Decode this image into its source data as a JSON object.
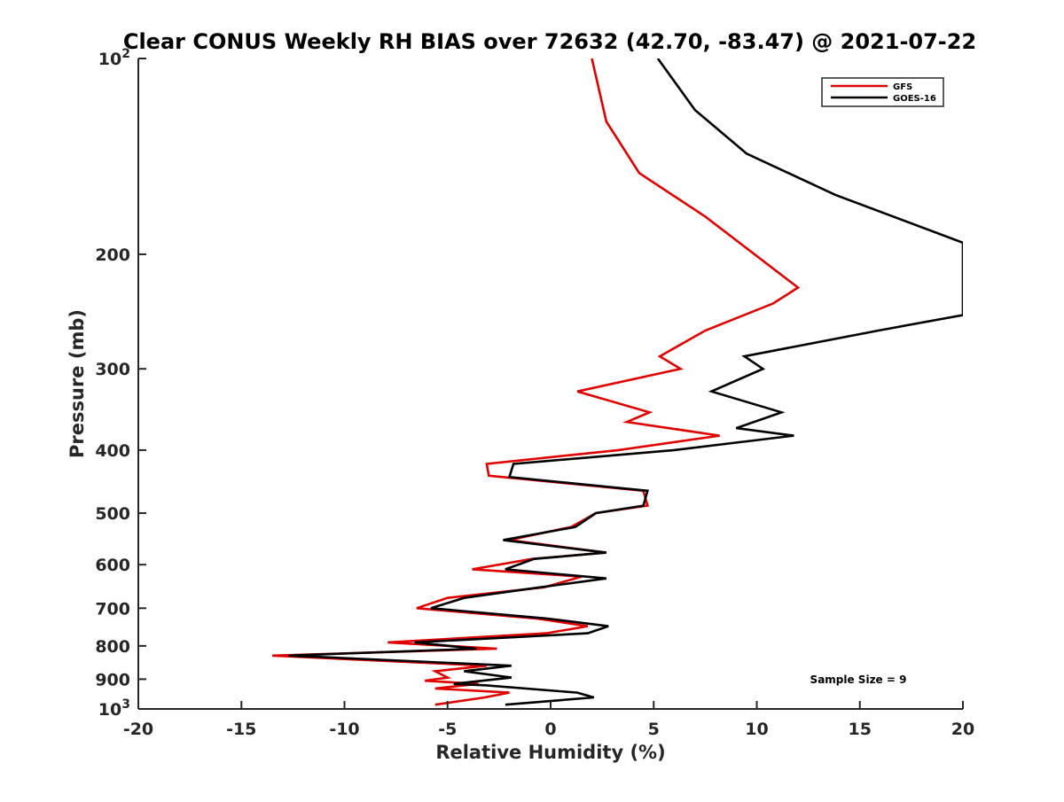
{
  "chart_data": {
    "type": "line",
    "title": "Clear CONUS Weekly RH BIAS over 72632 (42.70, -83.47) @ 2021-07-22",
    "xlabel": "Relative Humidity (%)",
    "ylabel": "Pressure (mb)",
    "xlim": [
      -20,
      20
    ],
    "ylim": [
      100,
      1000
    ],
    "y_scale": "log",
    "y_reversed": true,
    "grid": false,
    "legend_position": "top-right",
    "x_ticks": [
      -20,
      -15,
      -10,
      -5,
      0,
      5,
      10,
      15,
      20
    ],
    "x_tick_labels": [
      "-20",
      "-15",
      "-10",
      "-5",
      "0",
      "5",
      "10",
      "15",
      "20"
    ],
    "y_ticks": [
      100,
      200,
      300,
      400,
      500,
      600,
      700,
      800,
      900,
      1000
    ],
    "y_tick_labels": [
      {
        "base": "10",
        "exp": "2"
      },
      {
        "base": "200",
        "exp": ""
      },
      {
        "base": "300",
        "exp": ""
      },
      {
        "base": "400",
        "exp": ""
      },
      {
        "base": "500",
        "exp": ""
      },
      {
        "base": "600",
        "exp": ""
      },
      {
        "base": "700",
        "exp": ""
      },
      {
        "base": "800",
        "exp": ""
      },
      {
        "base": "900",
        "exp": ""
      },
      {
        "base": "10",
        "exp": "3"
      }
    ],
    "series": [
      {
        "name": "GFS",
        "color": "#e00000",
        "points": [
          [
            2.0,
            100
          ],
          [
            2.7,
            125
          ],
          [
            4.3,
            150
          ],
          [
            7.5,
            175
          ],
          [
            12.0,
            225
          ],
          [
            10.8,
            238
          ],
          [
            7.5,
            262
          ],
          [
            5.3,
            287
          ],
          [
            6.3,
            300
          ],
          [
            1.3,
            325
          ],
          [
            4.8,
            350
          ],
          [
            3.7,
            362
          ],
          [
            8.2,
            380
          ],
          [
            3.3,
            400
          ],
          [
            -3.1,
            420
          ],
          [
            -3.0,
            438
          ],
          [
            4.5,
            462
          ],
          [
            4.7,
            487
          ],
          [
            2.2,
            500
          ],
          [
            1.0,
            525
          ],
          [
            -2.0,
            550
          ],
          [
            2.7,
            575
          ],
          [
            -0.9,
            588
          ],
          [
            -3.8,
            610
          ],
          [
            1.5,
            626
          ],
          [
            -0.3,
            650
          ],
          [
            -5.0,
            675
          ],
          [
            -6.5,
            700
          ],
          [
            -0.7,
            726
          ],
          [
            1.8,
            746
          ],
          [
            -0.2,
            765
          ],
          [
            -7.9,
            790
          ],
          [
            -2.6,
            808
          ],
          [
            -13.5,
            828
          ],
          [
            -3.1,
            858
          ],
          [
            -5.6,
            875
          ],
          [
            -5.0,
            895
          ],
          [
            -6.1,
            905
          ],
          [
            -3.5,
            915
          ],
          [
            -5.6,
            930
          ],
          [
            -2.0,
            944
          ],
          [
            -3.2,
            960
          ],
          [
            -5.6,
            985
          ]
        ]
      },
      {
        "name": "GOES-16",
        "color": "#000000",
        "points": [
          [
            5.2,
            100
          ],
          [
            7.0,
            120
          ],
          [
            9.5,
            140
          ],
          [
            13.8,
            162
          ],
          [
            20.0,
            192
          ],
          [
            20.0,
            248
          ],
          [
            15.9,
            262
          ],
          [
            9.4,
            287
          ],
          [
            10.3,
            300
          ],
          [
            7.8,
            325
          ],
          [
            11.2,
            350
          ],
          [
            9.0,
            370
          ],
          [
            11.8,
            380
          ],
          [
            6.0,
            400
          ],
          [
            -1.8,
            420
          ],
          [
            -2.0,
            440
          ],
          [
            4.7,
            462
          ],
          [
            4.5,
            487
          ],
          [
            2.2,
            500
          ],
          [
            1.2,
            525
          ],
          [
            -2.3,
            550
          ],
          [
            2.7,
            575
          ],
          [
            -0.8,
            588
          ],
          [
            -2.2,
            610
          ],
          [
            2.7,
            630
          ],
          [
            -0.5,
            650
          ],
          [
            -4.2,
            675
          ],
          [
            -5.8,
            700
          ],
          [
            -0.2,
            726
          ],
          [
            2.8,
            746
          ],
          [
            1.8,
            765
          ],
          [
            -6.6,
            790
          ],
          [
            -3.6,
            808
          ],
          [
            -12.7,
            828
          ],
          [
            -1.9,
            858
          ],
          [
            -4.2,
            875
          ],
          [
            -1.9,
            895
          ],
          [
            -4.7,
            915
          ],
          [
            -3.1,
            920
          ],
          [
            1.3,
            944
          ],
          [
            2.1,
            960
          ],
          [
            -2.2,
            985
          ]
        ]
      }
    ],
    "annotation": "Sample Size = 9"
  }
}
